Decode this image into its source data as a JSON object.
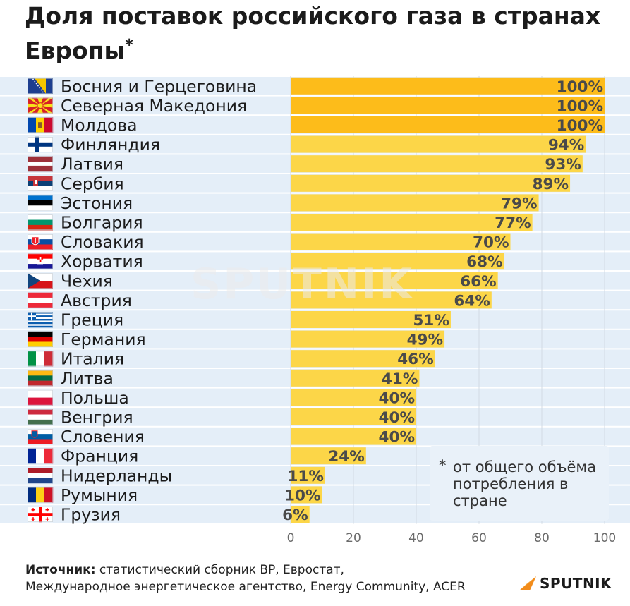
{
  "header": {
    "title": "Доля поставок российского газа в странах Европы",
    "title_mark": "*"
  },
  "chart_data": {
    "type": "bar",
    "orientation": "horizontal",
    "title": "Доля поставок российского газа в странах Европы*",
    "categories": [
      "Босния и Герцеговина",
      "Северная Македония",
      "Молдова",
      "Финляндия",
      "Латвия",
      "Сербия",
      "Эстония",
      "Болгария",
      "Словакия",
      "Хорватия",
      "Чехия",
      "Австрия",
      "Греция",
      "Германия",
      "Италия",
      "Литва",
      "Польша",
      "Венгрия",
      "Словения",
      "Франция",
      "Нидерланды",
      "Румыния",
      "Грузия"
    ],
    "values": [
      100,
      100,
      100,
      94,
      93,
      89,
      79,
      77,
      70,
      68,
      66,
      64,
      51,
      49,
      46,
      41,
      40,
      40,
      40,
      24,
      11,
      10,
      6
    ],
    "value_labels": [
      "100%",
      "100%",
      "100%",
      "94%",
      "93%",
      "89%",
      "79%",
      "77%",
      "70%",
      "68%",
      "66%",
      "64%",
      "51%",
      "49%",
      "46%",
      "41%",
      "40%",
      "40%",
      "40%",
      "24%",
      "11%",
      "10%",
      "6%"
    ],
    "xlim": [
      0,
      100
    ],
    "x_ticks": [
      0,
      20,
      40,
      60,
      80,
      100
    ],
    "grid": true,
    "colors": {
      "full": "#fdbc1a",
      "bar": "#fcd648",
      "row_band": "#e4eef8"
    },
    "flags": [
      "flag-bosnia",
      "flag-north-macedonia",
      "flag-moldova",
      "flag-finland",
      "flag-latvia",
      "flag-serbia",
      "flag-estonia",
      "flag-bulgaria",
      "flag-slovakia",
      "flag-croatia",
      "flag-czechia",
      "flag-austria",
      "flag-greece",
      "flag-germany",
      "flag-italy",
      "flag-lithuania",
      "flag-poland",
      "flag-hungary",
      "flag-slovenia",
      "flag-france",
      "flag-netherlands",
      "flag-romania",
      "flag-georgia"
    ]
  },
  "note": {
    "mark": "*",
    "text": "от общего объёма потребления в стране"
  },
  "footer": {
    "source_label": "Источник:",
    "source_text": "статистический сборник ВР, Евростат,",
    "source_text_2": "Международное энергетическое агентство, Energy Community, ACER"
  },
  "brand": {
    "logo_text": "SPUTNIK",
    "watermark": "SPUTNIK"
  }
}
